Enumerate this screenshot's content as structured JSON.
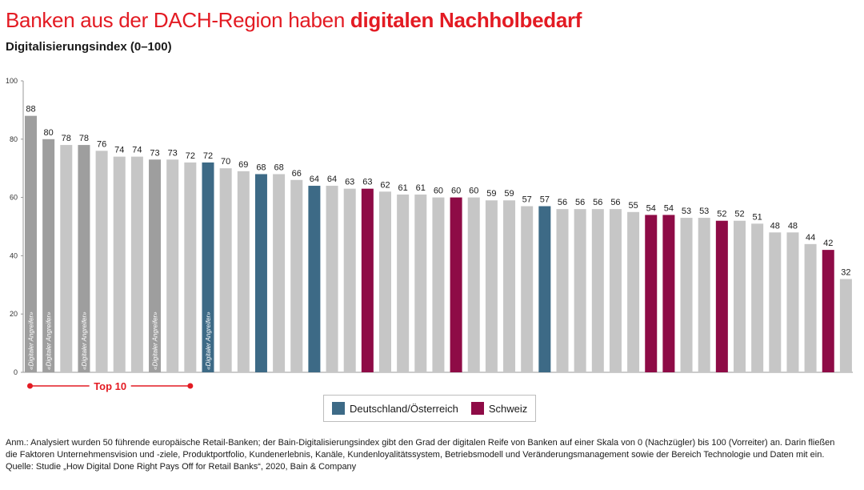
{
  "title_plain": "Banken aus der DACH-Region haben ",
  "title_highlight": "digitalen Nachholbedarf",
  "subtitle": "Digitalisierungsindex (0–100)",
  "colors": {
    "default": "#c6c6c6",
    "digital": "#9e9e9e",
    "de_at": "#3d6a86",
    "ch": "#8e0b46",
    "accent": "#e31b23"
  },
  "chart_data": {
    "type": "bar",
    "ylim": [
      0,
      100
    ],
    "yticks": [
      0,
      20,
      40,
      60,
      80,
      100
    ],
    "values": [
      88,
      80,
      78,
      78,
      76,
      74,
      74,
      73,
      73,
      72,
      72,
      70,
      69,
      68,
      68,
      66,
      64,
      64,
      63,
      63,
      62,
      61,
      61,
      60,
      60,
      60,
      59,
      59,
      57,
      57,
      56,
      56,
      56,
      56,
      55,
      54,
      54,
      53,
      53,
      52,
      52,
      51,
      48,
      48,
      44,
      42,
      32
    ],
    "groups": [
      "digital",
      "digital",
      "default",
      "digital",
      "default",
      "default",
      "default",
      "digital",
      "default",
      "default",
      "de_at_digital",
      "default",
      "default",
      "de_at",
      "default",
      "default",
      "de_at",
      "default",
      "default",
      "ch",
      "default",
      "default",
      "default",
      "default",
      "ch",
      "default",
      "default",
      "default",
      "default",
      "de_at",
      "default",
      "default",
      "default",
      "default",
      "default",
      "ch",
      "ch",
      "default",
      "default",
      "ch",
      "default",
      "default",
      "default",
      "default",
      "default",
      "ch",
      "default"
    ],
    "bar_text": "«Digitaler Angreifer»",
    "top10_label": "Top 10",
    "top10_count": 10,
    "legend": [
      {
        "name": "Deutschland/Österreich",
        "color": "#3d6a86"
      },
      {
        "name": "Schweiz",
        "color": "#8e0b46"
      }
    ]
  },
  "notes": {
    "line1": "Anm.: Analysiert wurden 50 führende europäische Retail-Banken; der Bain-Digitalisierungsindex gibt den Grad der digitalen Reife von Banken auf einer Skala von 0 (Nachzügler) bis 100 (Vorreiter) an. Darin fließen",
    "line2": "die Faktoren Unternehmensvision und -ziele, Produktportfolio, Kundenerlebnis, Kanäle, Kundenloyalitätssystem, Betriebsmodell und Veränderungsmanagement sowie der Bereich Technologie und Daten mit ein.",
    "line3": "Quelle: Studie „How Digital Done Right Pays Off for Retail Banks“, 2020, Bain & Company"
  }
}
